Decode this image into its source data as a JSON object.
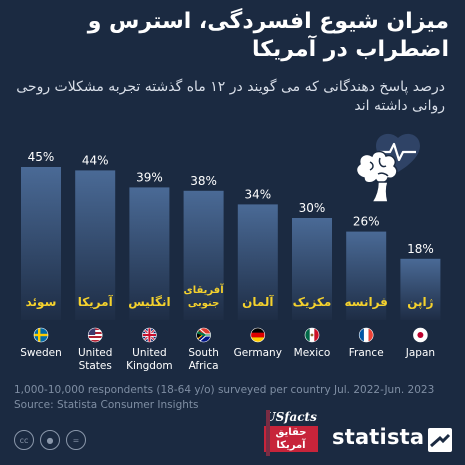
{
  "title": "میزان شیوع افسردگی، استرس و اضطراب در آمریکا",
  "subtitle": "درصد پاسخ دهندگانی که می گویند در ۱۲ ماه گذشته تجربه مشکلات روحی روانی داشته اند",
  "chart_data": {
    "type": "bar",
    "categories": [
      "Sweden",
      "United States",
      "United Kingdom",
      "South Africa",
      "Germany",
      "Mexico",
      "France",
      "Japan"
    ],
    "categories_fa": [
      "سوئد",
      "آمریکا",
      "انگلیس",
      "آفریقای جنوبی",
      "آلمان",
      "مکزیک",
      "فرانسه",
      "ژاپن"
    ],
    "values": [
      45,
      44,
      39,
      38,
      34,
      30,
      26,
      18
    ],
    "value_labels": [
      "45%",
      "44%",
      "39%",
      "38%",
      "34%",
      "30%",
      "26%",
      "18%"
    ],
    "ylim": [
      0,
      50
    ],
    "colors": {
      "bar_top": "#4a6a96",
      "bar_bottom": "#1e2d45",
      "label_text": "#f5d22d",
      "value_text": "#ffffff",
      "background": "#1b2a41"
    }
  },
  "flags": [
    "sweden-flag-icon",
    "us-flag-icon",
    "uk-flag-icon",
    "south-africa-flag-icon",
    "germany-flag-icon",
    "mexico-flag-icon",
    "france-flag-icon",
    "japan-flag-icon"
  ],
  "footnote": {
    "line1": "1,000-10,000 respondents (18-64 y/o) surveyed per country Jul. 2022-Jun. 2023",
    "line2": "Source: Statista Consumer Insights"
  },
  "logos": {
    "usfacts_top": "USfacts",
    "usfacts_bottom": "حقایق آمریکا",
    "brand": "statista"
  },
  "icons": [
    "brain-heart-icon",
    "cc-icon",
    "by-icon",
    "nd-icon"
  ]
}
